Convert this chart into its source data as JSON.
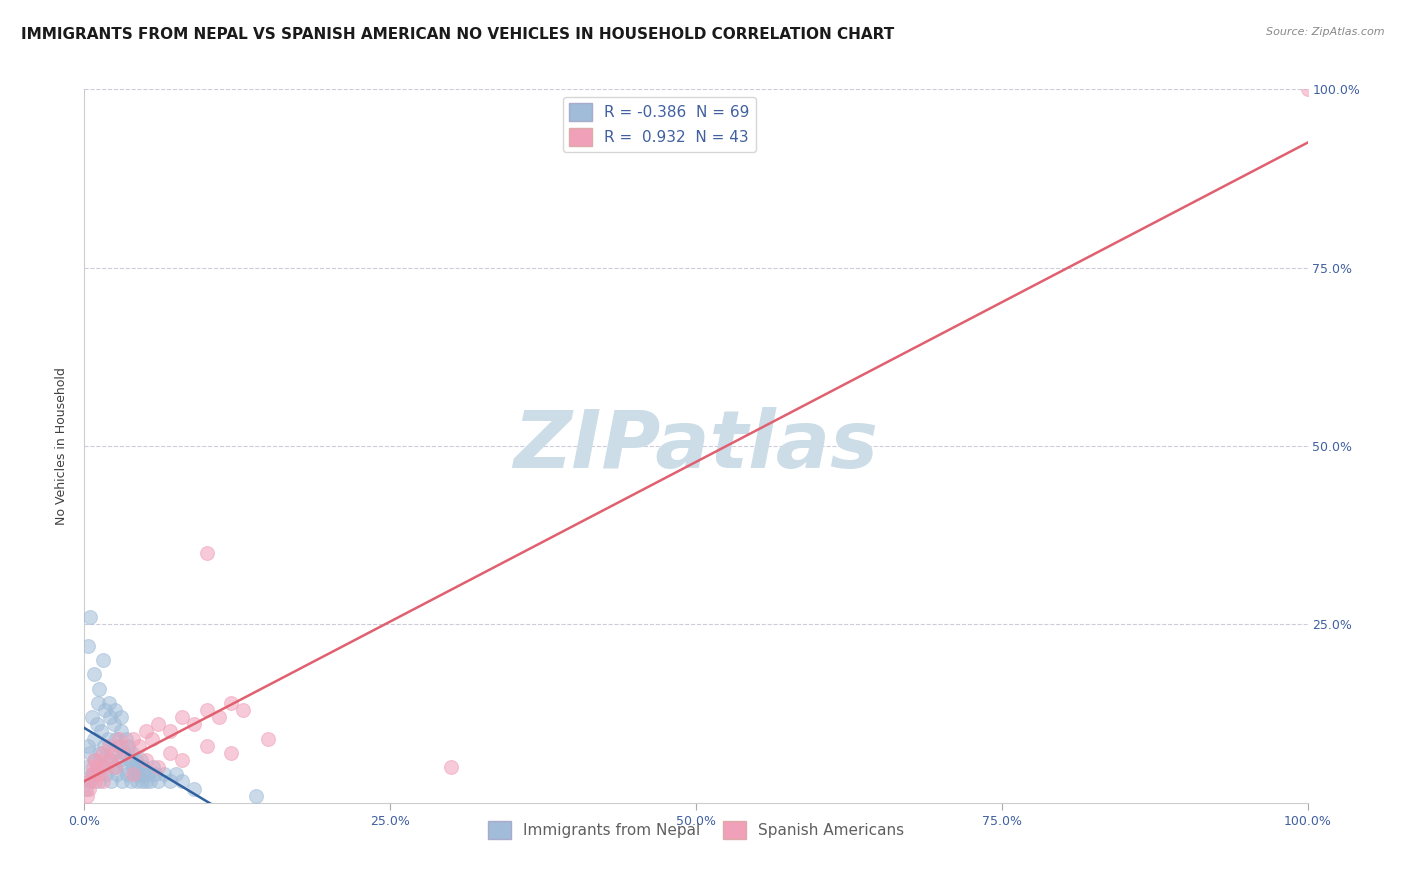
{
  "title": "IMMIGRANTS FROM NEPAL VS SPANISH AMERICAN NO VEHICLES IN HOUSEHOLD CORRELATION CHART",
  "source": "Source: ZipAtlas.com",
  "ylabel": "No Vehicles in Household",
  "legend_items": [
    {
      "label": "R = -0.386  N = 69",
      "color": "#a8c4e0"
    },
    {
      "label": "R =  0.932  N = 43",
      "color": "#f4a0b0"
    }
  ],
  "bottom_legend": [
    {
      "label": "Immigrants from Nepal",
      "color": "#a8c4e0"
    },
    {
      "label": "Spanish Americans",
      "color": "#f4a0b0"
    }
  ],
  "nepal_x": [
    0.1,
    0.2,
    0.3,
    0.4,
    0.5,
    0.6,
    0.7,
    0.8,
    0.9,
    1.0,
    1.1,
    1.2,
    1.3,
    1.4,
    1.5,
    1.6,
    1.7,
    1.8,
    1.9,
    2.0,
    2.1,
    2.2,
    2.3,
    2.4,
    2.5,
    2.6,
    2.7,
    2.8,
    2.9,
    3.0,
    3.1,
    3.2,
    3.3,
    3.4,
    3.5,
    3.6,
    3.7,
    3.8,
    3.9,
    4.0,
    4.1,
    4.2,
    4.3,
    4.4,
    4.5,
    4.6,
    4.7,
    4.8,
    4.9,
    5.0,
    5.2,
    5.4,
    5.6,
    5.8,
    6.0,
    6.5,
    7.0,
    7.5,
    8.0,
    9.0,
    0.3,
    0.5,
    0.8,
    1.2,
    1.5,
    2.0,
    2.5,
    3.0,
    14.0
  ],
  "nepal_y": [
    2.0,
    5.0,
    8.0,
    3.0,
    7.0,
    12.0,
    4.0,
    9.0,
    6.0,
    11.0,
    14.0,
    3.0,
    7.0,
    10.0,
    5.0,
    8.0,
    13.0,
    4.0,
    9.0,
    6.0,
    12.0,
    3.0,
    7.0,
    11.0,
    5.0,
    9.0,
    4.0,
    8.0,
    6.0,
    10.0,
    3.0,
    7.0,
    5.0,
    9.0,
    4.0,
    8.0,
    6.0,
    3.0,
    7.0,
    5.0,
    4.0,
    6.0,
    3.0,
    5.0,
    4.0,
    6.0,
    3.0,
    5.0,
    4.0,
    3.0,
    4.0,
    3.0,
    5.0,
    4.0,
    3.0,
    4.0,
    3.0,
    4.0,
    3.0,
    2.0,
    22.0,
    26.0,
    18.0,
    16.0,
    20.0,
    14.0,
    13.0,
    12.0,
    1.0
  ],
  "spanish_x": [
    0.2,
    0.4,
    0.5,
    0.6,
    0.7,
    0.8,
    0.9,
    1.0,
    1.2,
    1.4,
    1.5,
    1.8,
    2.0,
    2.2,
    2.5,
    2.8,
    3.0,
    3.5,
    4.0,
    4.5,
    5.0,
    5.5,
    6.0,
    7.0,
    8.0,
    9.0,
    10.0,
    11.0,
    12.0,
    13.0,
    1.5,
    2.5,
    4.0,
    5.0,
    6.0,
    7.0,
    8.0,
    10.0,
    12.0,
    15.0,
    10.0,
    30.0,
    100.0
  ],
  "spanish_y": [
    1.0,
    2.0,
    3.0,
    4.0,
    5.0,
    6.0,
    3.0,
    5.0,
    4.0,
    6.0,
    7.0,
    5.0,
    8.0,
    6.0,
    7.0,
    9.0,
    8.0,
    7.0,
    9.0,
    8.0,
    10.0,
    9.0,
    11.0,
    10.0,
    12.0,
    11.0,
    13.0,
    12.0,
    14.0,
    13.0,
    3.0,
    5.0,
    4.0,
    6.0,
    5.0,
    7.0,
    6.0,
    8.0,
    7.0,
    9.0,
    35.0,
    5.0,
    100.0
  ],
  "nepal_R": -0.386,
  "nepal_N": 69,
  "spanish_R": 0.932,
  "spanish_N": 43,
  "nepal_color": "#a0bcd8",
  "spanish_color": "#f0a0b8",
  "nepal_line_color": "#3060a0",
  "spanish_line_color": "#e06070",
  "background_color": "#ffffff",
  "grid_color": "#ccccdd",
  "watermark_text": "ZIPatlas",
  "watermark_color": "#ccdde8",
  "tick_color": "#4060a0",
  "title_fontsize": 11,
  "tick_fontsize": 9,
  "axis_label_fontsize": 9
}
